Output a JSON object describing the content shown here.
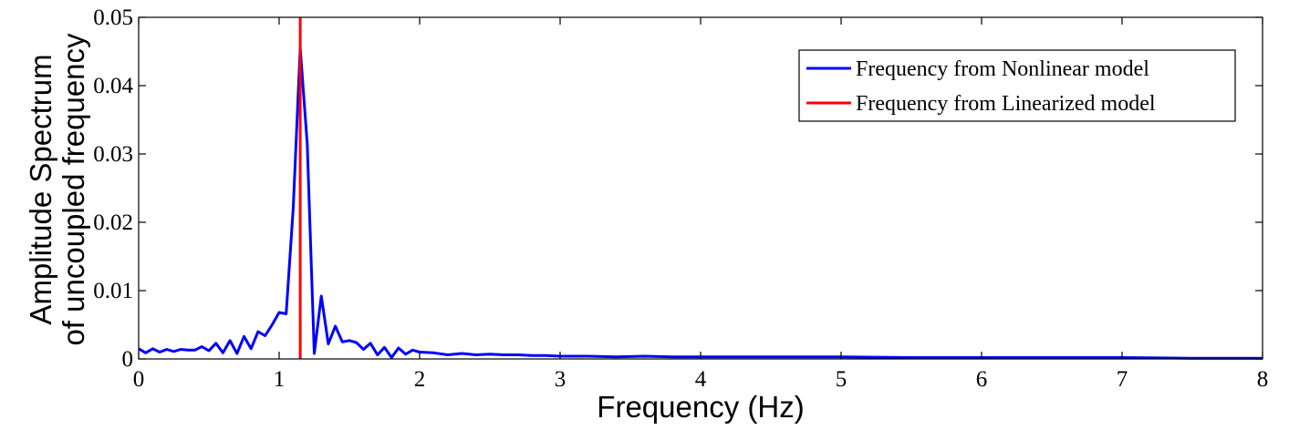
{
  "chart_data": {
    "type": "line",
    "title": "",
    "xlabel": "Frequency (Hz)",
    "ylabel_lines": [
      "Amplitude Spectrum",
      "of uncoupled frequency"
    ],
    "xlim": [
      0,
      8
    ],
    "ylim": [
      0,
      0.05
    ],
    "xticks": [
      0,
      1,
      2,
      3,
      4,
      5,
      6,
      7,
      8
    ],
    "yticks": [
      0,
      0.01,
      0.02,
      0.03,
      0.04,
      0.05
    ],
    "xtick_labels": [
      "0",
      "1",
      "2",
      "3",
      "4",
      "5",
      "6",
      "7",
      "8"
    ],
    "ytick_labels": [
      "0",
      "0.01",
      "0.02",
      "0.03",
      "0.04",
      "0.05"
    ],
    "grid": false,
    "legend_position": "top-right",
    "series": [
      {
        "name": "Frequency from Nonlinear model",
        "color": "#0000ff",
        "x": [
          0,
          0.05,
          0.1,
          0.15,
          0.2,
          0.25,
          0.3,
          0.35,
          0.4,
          0.45,
          0.5,
          0.55,
          0.6,
          0.65,
          0.7,
          0.75,
          0.8,
          0.85,
          0.9,
          0.95,
          1.0,
          1.05,
          1.1,
          1.15,
          1.2,
          1.25,
          1.3,
          1.35,
          1.4,
          1.45,
          1.5,
          1.55,
          1.6,
          1.65,
          1.7,
          1.75,
          1.8,
          1.85,
          1.9,
          1.95,
          2.0,
          2.1,
          2.2,
          2.3,
          2.4,
          2.5,
          2.6,
          2.7,
          2.8,
          2.9,
          3.0,
          3.2,
          3.4,
          3.6,
          3.8,
          4.0,
          4.5,
          5.0,
          5.5,
          6.0,
          6.5,
          7.0,
          7.5,
          8.0
        ],
        "y": [
          0.0015,
          0.0009,
          0.0015,
          0.001,
          0.0014,
          0.0011,
          0.0014,
          0.0013,
          0.0013,
          0.0018,
          0.0012,
          0.0023,
          0.0009,
          0.0027,
          0.0008,
          0.0033,
          0.0015,
          0.004,
          0.0034,
          0.005,
          0.0068,
          0.0066,
          0.022,
          0.0455,
          0.0315,
          0.0008,
          0.0092,
          0.0022,
          0.0048,
          0.0025,
          0.0027,
          0.0024,
          0.0014,
          0.0023,
          0.0006,
          0.0017,
          0.0002,
          0.0016,
          0.0007,
          0.0013,
          0.001,
          0.0009,
          0.0006,
          0.0008,
          0.0006,
          0.0007,
          0.0006,
          0.0006,
          0.0005,
          0.0005,
          0.0004,
          0.0004,
          0.0003,
          0.0004,
          0.0003,
          0.0003,
          0.0003,
          0.0003,
          0.0002,
          0.0002,
          0.0002,
          0.0002,
          0.0001,
          0.0001
        ]
      },
      {
        "name": "Frequency from Linearized model",
        "color": "#ff0000",
        "x": [
          1.15,
          1.15
        ],
        "y": [
          0,
          0.05
        ]
      }
    ]
  }
}
